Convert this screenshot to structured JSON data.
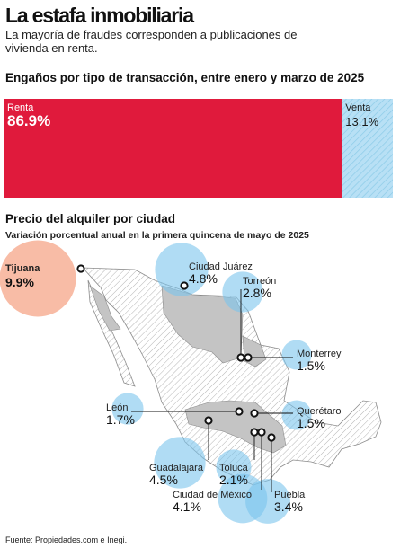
{
  "header": {
    "title": "La estafa inmobiliaria",
    "subtitle": "La mayoría de fraudes corresponden a publicaciones de vivienda en renta."
  },
  "bar_section": {
    "title": "Engaños por tipo de transacción, entre enero y marzo de 2025"
  },
  "map_section": {
    "title": "Precio del alquiler por ciudad",
    "subtitle": "Variación porcentual anual en la primera quincena de mayo de 2025"
  },
  "source": "Fuente: Propiedades.com e Inegi.",
  "colors": {
    "renta": "#e01a3c",
    "venta": "#b8e0f5",
    "venta_hatch": "#7fbfe0",
    "bubble_blue": "#7cc4ec",
    "bubble_highlight": "#f5a080",
    "map_fill": "#c9c9c9",
    "map_hatch": "#bdbdbd"
  },
  "chart_data": [
    {
      "type": "bar",
      "stacked": true,
      "orientation": "horizontal",
      "title": "Engaños por tipo de transacción, entre enero y marzo de 2025",
      "unit": "%",
      "categories": [
        "Renta",
        "Venta"
      ],
      "values": [
        86.9,
        13.1
      ],
      "value_labels": [
        "86.9%",
        "13.1%"
      ]
    },
    {
      "type": "scatter",
      "title": "Precio del alquiler por ciudad",
      "subtitle": "Variación porcentual anual en la primera quincena de mayo de 2025",
      "unit": "%",
      "points": [
        {
          "city": "Tijuana",
          "value": 9.9,
          "label": "9.9%",
          "highlight": true
        },
        {
          "city": "Ciudad Juárez",
          "value": 4.8,
          "label": "4.8%"
        },
        {
          "city": "Torreón",
          "value": 2.8,
          "label": "2.8%"
        },
        {
          "city": "Monterrey",
          "value": 1.5,
          "label": "1.5%"
        },
        {
          "city": "León",
          "value": 1.7,
          "label": "1.7%"
        },
        {
          "city": "Querétaro",
          "value": 1.5,
          "label": "1.5%"
        },
        {
          "city": "Guadalajara",
          "value": 4.5,
          "label": "4.5%"
        },
        {
          "city": "Toluca",
          "value": 2.1,
          "label": "2.1%"
        },
        {
          "city": "Ciudad de México",
          "value": 4.1,
          "label": "4.1%"
        },
        {
          "city": "Puebla",
          "value": 3.4,
          "label": "3.4%"
        }
      ]
    }
  ]
}
